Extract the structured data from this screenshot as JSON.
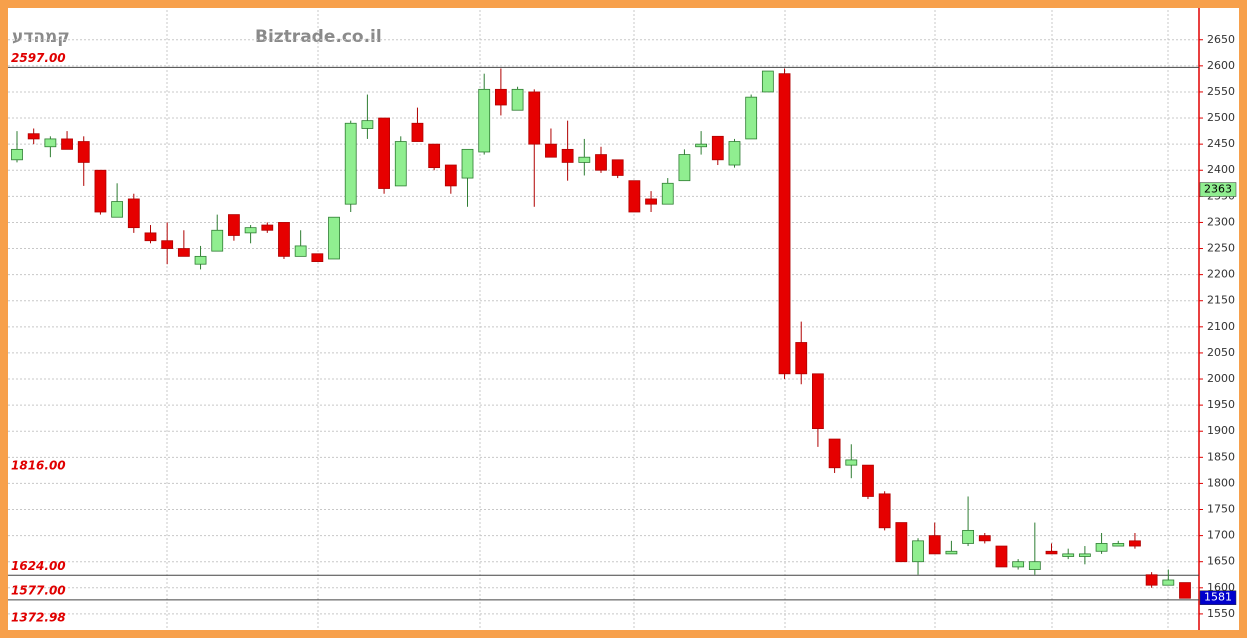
{
  "chart_data": {
    "type": "candlestick",
    "title": "קמהדע",
    "subtitle": "Biztrade.co.il",
    "up_color": "#90ee90",
    "down_color": "#e60000",
    "open": [
      2420,
      2470,
      2445,
      2460,
      2455,
      2400,
      2310,
      2345,
      2280,
      2265,
      2250,
      2220,
      2245,
      2315,
      2280,
      2295,
      2300,
      2235,
      2240,
      2230,
      2335,
      2480,
      2500,
      2370,
      2490,
      2450,
      2410,
      2385,
      2435,
      2555,
      2515,
      2550,
      2450,
      2440,
      2415,
      2430,
      2420,
      2380,
      2345,
      2335,
      2380,
      2445,
      2465,
      2410,
      2460,
      2550,
      2585,
      2070,
      2010,
      1885,
      1835,
      1835,
      1780,
      1725,
      1650,
      1700,
      1665,
      1685,
      1700,
      1680,
      1640,
      1635,
      1670,
      1660,
      1660,
      1670,
      1680,
      1690,
      1625,
      1605,
      1610
    ],
    "high": [
      2475,
      2480,
      2465,
      2475,
      2465,
      2400,
      2375,
      2355,
      2295,
      2300,
      2285,
      2255,
      2315,
      2315,
      2295,
      2300,
      2300,
      2285,
      2240,
      2310,
      2495,
      2545,
      2500,
      2465,
      2520,
      2450,
      2410,
      2440,
      2585,
      2595,
      2560,
      2555,
      2480,
      2495,
      2460,
      2445,
      2420,
      2380,
      2360,
      2385,
      2440,
      2475,
      2465,
      2460,
      2545,
      2590,
      2595,
      2110,
      2010,
      1885,
      1875,
      1835,
      1785,
      1725,
      1695,
      1725,
      1690,
      1775,
      1705,
      1680,
      1655,
      1725,
      1685,
      1675,
      1680,
      1705,
      1690,
      1705,
      1630,
      1635,
      1610
    ],
    "low": [
      2415,
      2450,
      2425,
      2440,
      2370,
      2315,
      2310,
      2280,
      2260,
      2220,
      2235,
      2210,
      2245,
      2265,
      2260,
      2280,
      2230,
      2235,
      2225,
      2230,
      2320,
      2460,
      2355,
      2370,
      2455,
      2400,
      2355,
      2330,
      2430,
      2505,
      2515,
      2330,
      2425,
      2380,
      2390,
      2395,
      2385,
      2320,
      2320,
      2335,
      2380,
      2430,
      2410,
      2405,
      2460,
      2550,
      2000,
      1990,
      1870,
      1820,
      1810,
      1770,
      1710,
      1650,
      1625,
      1665,
      1665,
      1680,
      1685,
      1640,
      1635,
      1625,
      1665,
      1655,
      1645,
      1665,
      1680,
      1675,
      1600,
      1605,
      1580
    ],
    "close": [
      2440,
      2460,
      2460,
      2440,
      2415,
      2320,
      2340,
      2290,
      2265,
      2250,
      2235,
      2235,
      2285,
      2275,
      2290,
      2285,
      2235,
      2255,
      2225,
      2310,
      2490,
      2495,
      2365,
      2455,
      2455,
      2405,
      2370,
      2440,
      2555,
      2525,
      2555,
      2450,
      2425,
      2415,
      2425,
      2400,
      2390,
      2320,
      2335,
      2375,
      2430,
      2450,
      2420,
      2455,
      2540,
      2590,
      2010,
      2010,
      1905,
      1830,
      1845,
      1775,
      1715,
      1650,
      1690,
      1665,
      1670,
      1710,
      1690,
      1640,
      1650,
      1650,
      1665,
      1665,
      1665,
      1685,
      1685,
      1680,
      1605,
      1615,
      1580
    ],
    "ylim": [
      1523,
      2707
    ],
    "yticks": [
      1550,
      1600,
      1650,
      1700,
      1750,
      1800,
      1850,
      1900,
      1950,
      2000,
      2050,
      2100,
      2150,
      2200,
      2250,
      2300,
      2350,
      2400,
      2450,
      2500,
      2550,
      2600,
      2650
    ],
    "levels": [
      {
        "value": 2597,
        "label": "2597.00",
        "line": true
      },
      {
        "value": 1816,
        "label": "1816.00",
        "line": false
      },
      {
        "value": 1624,
        "label": "1624.00",
        "line": true
      },
      {
        "value": 1577,
        "label": "1577.00",
        "line": true
      },
      {
        "value": 1372.98,
        "label": "1372.98",
        "line": false
      }
    ],
    "markers": [
      {
        "value": 2363,
        "color": "#90ee90",
        "text_color": "#000000"
      },
      {
        "value": 1581,
        "color": "#0000cc",
        "text_color": "#ffffff"
      }
    ]
  }
}
